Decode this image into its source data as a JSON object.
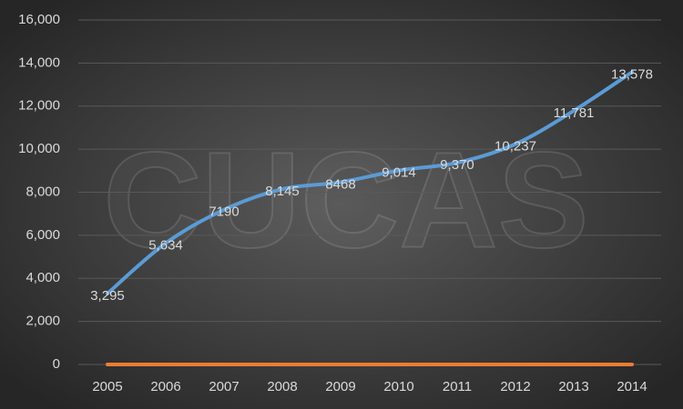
{
  "chart_data": {
    "type": "line",
    "watermark": "CUCAS",
    "categories": [
      "2005",
      "2006",
      "2007",
      "2008",
      "2009",
      "2010",
      "2011",
      "2012",
      "2013",
      "2014"
    ],
    "series": [
      {
        "color": "#5b9bd5",
        "values": [
          3295,
          5634,
          7190,
          8145,
          8468,
          9014,
          9370,
          10237,
          11781,
          13578
        ],
        "value_labels": [
          "3,295",
          "5,634",
          "7190",
          "8,145",
          "8468",
          "9,014",
          "9,370",
          "10,237",
          "11,781",
          "13,578"
        ]
      },
      {
        "color": "#ed7d31",
        "values": [
          0,
          0,
          0,
          0,
          0,
          0,
          0,
          0,
          0,
          0
        ]
      }
    ],
    "ylim": [
      0,
      16000
    ],
    "yticks": [
      0,
      {
        "value": 2000,
        "label": "2,000"
      },
      {
        "value": 4000,
        "label": "4,000"
      },
      {
        "value": 6000,
        "label": "6,000"
      },
      {
        "value": 8000,
        "label": "8,000"
      },
      {
        "value": 10000,
        "label": "10,000"
      },
      {
        "value": 12000,
        "label": "12,000"
      },
      {
        "value": 14000,
        "label": "14,000"
      },
      {
        "value": 16000,
        "label": "16,000"
      }
    ],
    "grid": true
  }
}
